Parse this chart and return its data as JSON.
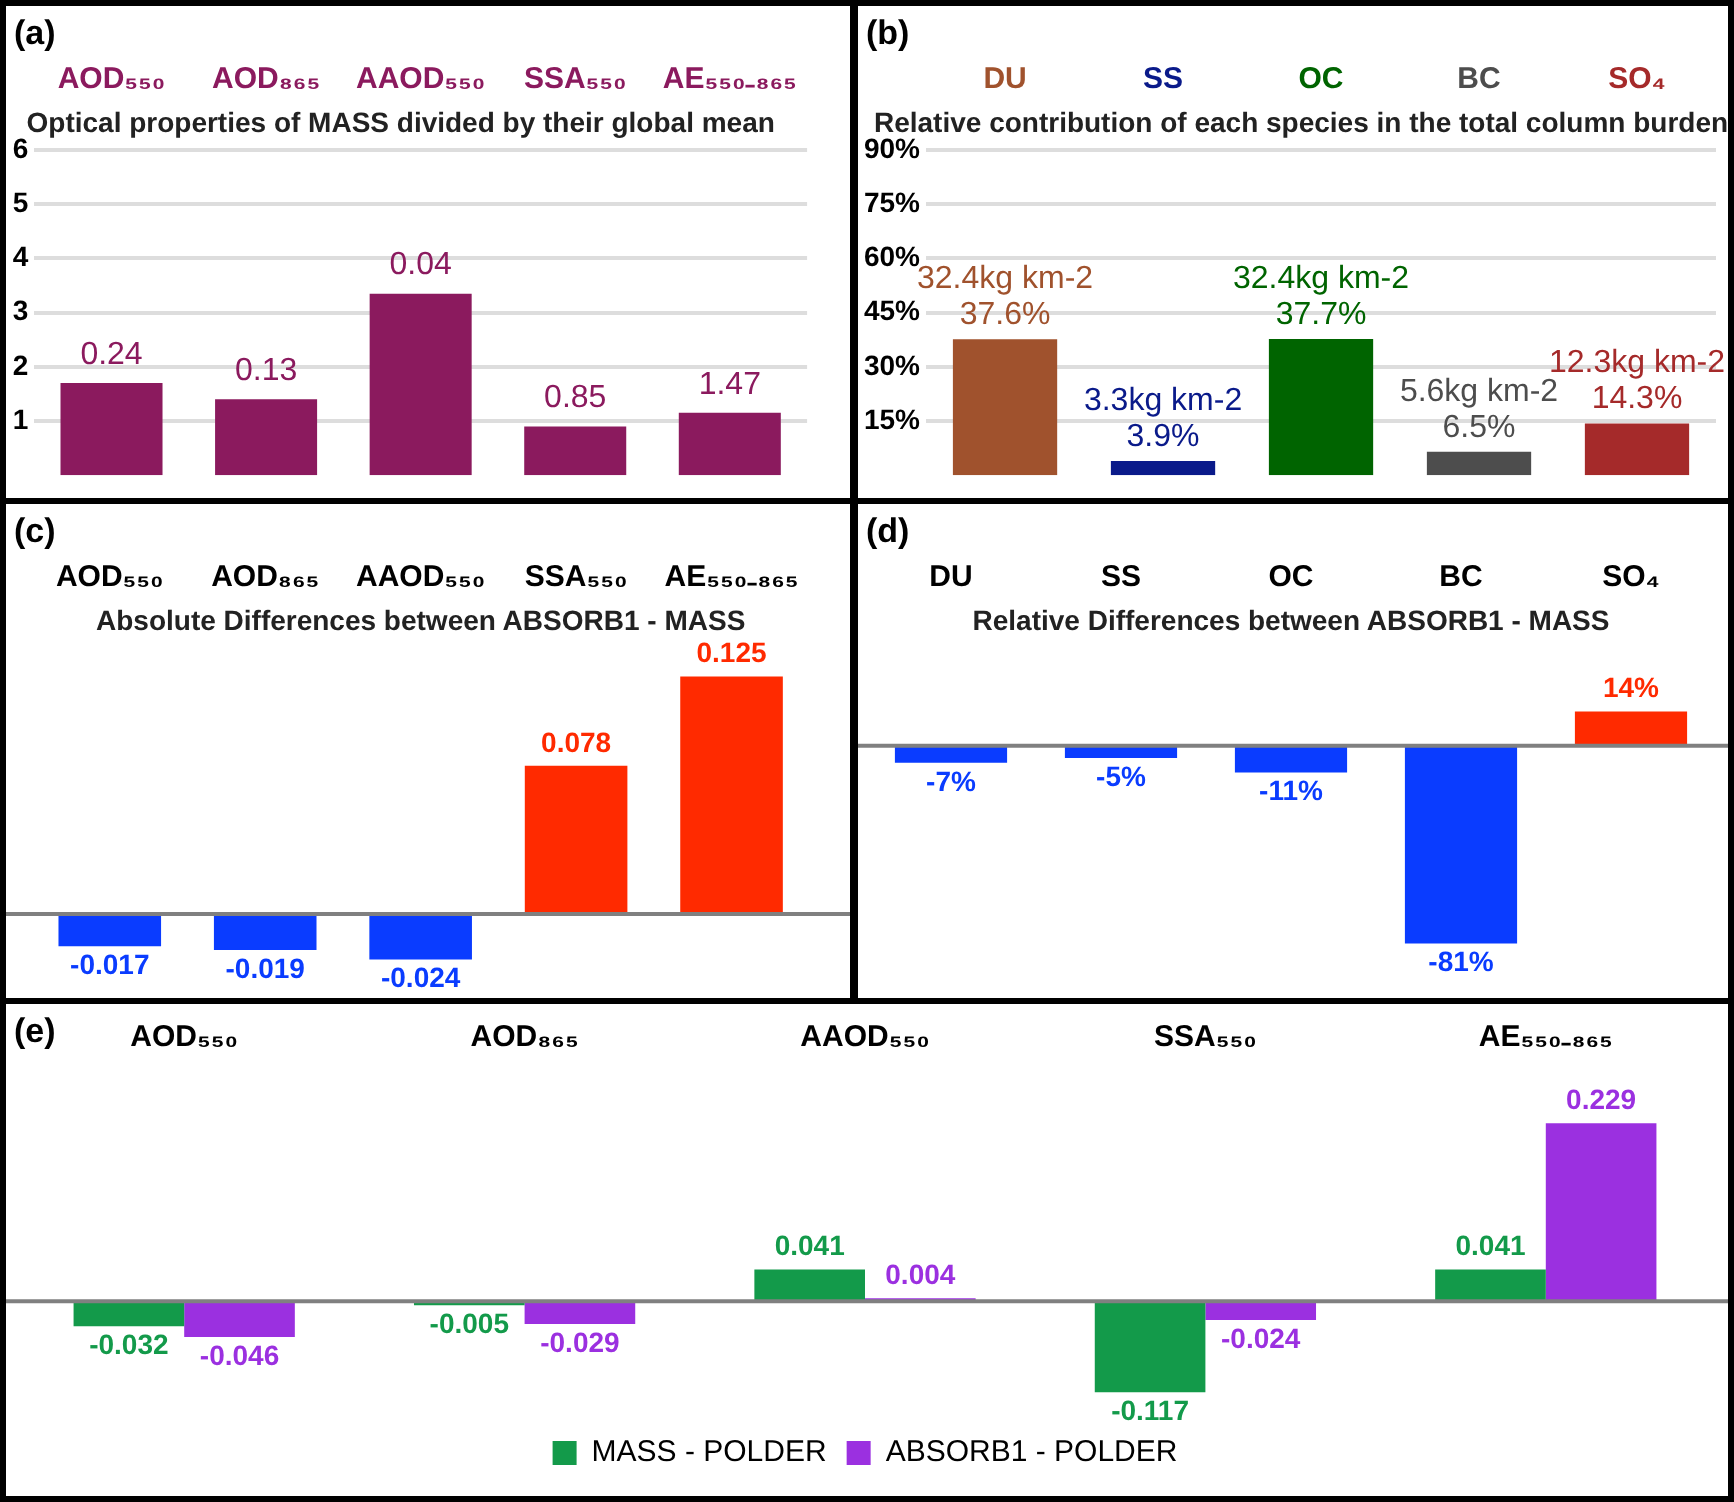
{
  "chart_data": [
    {
      "type": "bar",
      "title": "Optical properties of MASS divided by their global mean",
      "annotations": [
        "(a)",
        {
          "text": "0.24",
          "x": "AOD₅₅₀",
          "y": 1.7
        },
        {
          "text": "0.13",
          "x": "AOD₈₆₅",
          "y": 1.4
        },
        {
          "text": "0.04",
          "x": "AAOD₅₅₀",
          "y": 3.35
        },
        {
          "text": "0.85",
          "x": "SSA₅₅₀",
          "y": 0.9
        },
        {
          "text": "1.47",
          "x": "AE₅₅₀₋₈₆₅",
          "y": 1.15
        }
      ],
      "categories": [
        "AOD₅₅₀",
        "AOD₈₆₅",
        "AAOD₅₅₀",
        "SSA₅₅₀",
        "AE₅₅₀₋₈₆₅"
      ],
      "values": [
        1.7,
        1.4,
        3.35,
        0.9,
        1.15
      ],
      "color": "#8b1a5e",
      "ylim": [
        0,
        6
      ],
      "yticks": [
        1,
        2,
        3,
        4,
        5,
        6
      ],
      "grid": "y"
    },
    {
      "type": "bar",
      "title": "Relative contribution of each species in the total column burden",
      "annotations": [
        "(b)"
      ],
      "categories": [
        "DU",
        "SS",
        "OC",
        "BC",
        "SO₄"
      ],
      "values": [
        37.6,
        3.9,
        37.7,
        6.5,
        14.3
      ],
      "value_labels": [
        "32.4kg km-2\n37.6%",
        "3.3kg km-2\n3.9%",
        "32.4kg km-2\n37.7%",
        "5.6kg km-2\n6.5%",
        "12.3kg km-2\n14.3%"
      ],
      "colors": [
        "#a0522d",
        "#0a1a8a",
        "#006400",
        "#4d4d4d",
        "#a52a2a"
      ],
      "ylim": [
        0,
        90
      ],
      "yticks": [
        {
          "value": 15,
          "label": "15%"
        },
        {
          "value": 30,
          "label": "30%"
        },
        {
          "value": 45,
          "label": "45%"
        },
        {
          "value": 60,
          "label": "60%"
        },
        {
          "value": 75,
          "label": "75%"
        },
        {
          "value": 90,
          "label": "90%"
        }
      ],
      "grid": "y"
    },
    {
      "type": "bar",
      "title": "Absolute Differences between ABSORB1 - MASS",
      "annotations": [
        "(c)"
      ],
      "categories": [
        "AOD₅₅₀",
        "AOD₈₆₅",
        "AAOD₅₅₀",
        "SSA₅₅₀",
        "AE₅₅₀₋₈₆₅"
      ],
      "values": [
        -0.017,
        -0.019,
        -0.024,
        0.078,
        0.125
      ],
      "colors": [
        "#0a3cff",
        "#0a3cff",
        "#0a3cff",
        "#ff2a00",
        "#ff2a00"
      ],
      "data_labels": true
    },
    {
      "type": "bar",
      "title": "Relative Differences between ABSORB1 - MASS",
      "annotations": [
        "(d)"
      ],
      "categories": [
        "DU",
        "SS",
        "OC",
        "BC",
        "SO₄"
      ],
      "values": [
        -7,
        -5,
        -11,
        -81,
        14
      ],
      "value_labels": [
        "-7%",
        "-5%",
        "-11%",
        "-81%",
        "14%"
      ],
      "colors": [
        "#0a3cff",
        "#0a3cff",
        "#0a3cff",
        "#0a3cff",
        "#ff2a00"
      ]
    },
    {
      "type": "bar",
      "annotations": [
        "(e)"
      ],
      "categories": [
        "AOD₅₅₀",
        "AOD₈₆₅",
        "AAOD₅₅₀",
        "SSA₅₅₀",
        "AE₅₅₀₋₈₆₅"
      ],
      "series": [
        {
          "name": "MASS - POLDER",
          "color": "#139a4a",
          "values": [
            -0.032,
            -0.005,
            0.041,
            -0.117,
            0.041
          ]
        },
        {
          "name": "ABSORB1 - POLDER",
          "color": "#9b30e0",
          "values": [
            -0.046,
            -0.029,
            0.004,
            -0.024,
            0.229
          ]
        }
      ],
      "data_labels": true,
      "legend": "bottom"
    }
  ]
}
